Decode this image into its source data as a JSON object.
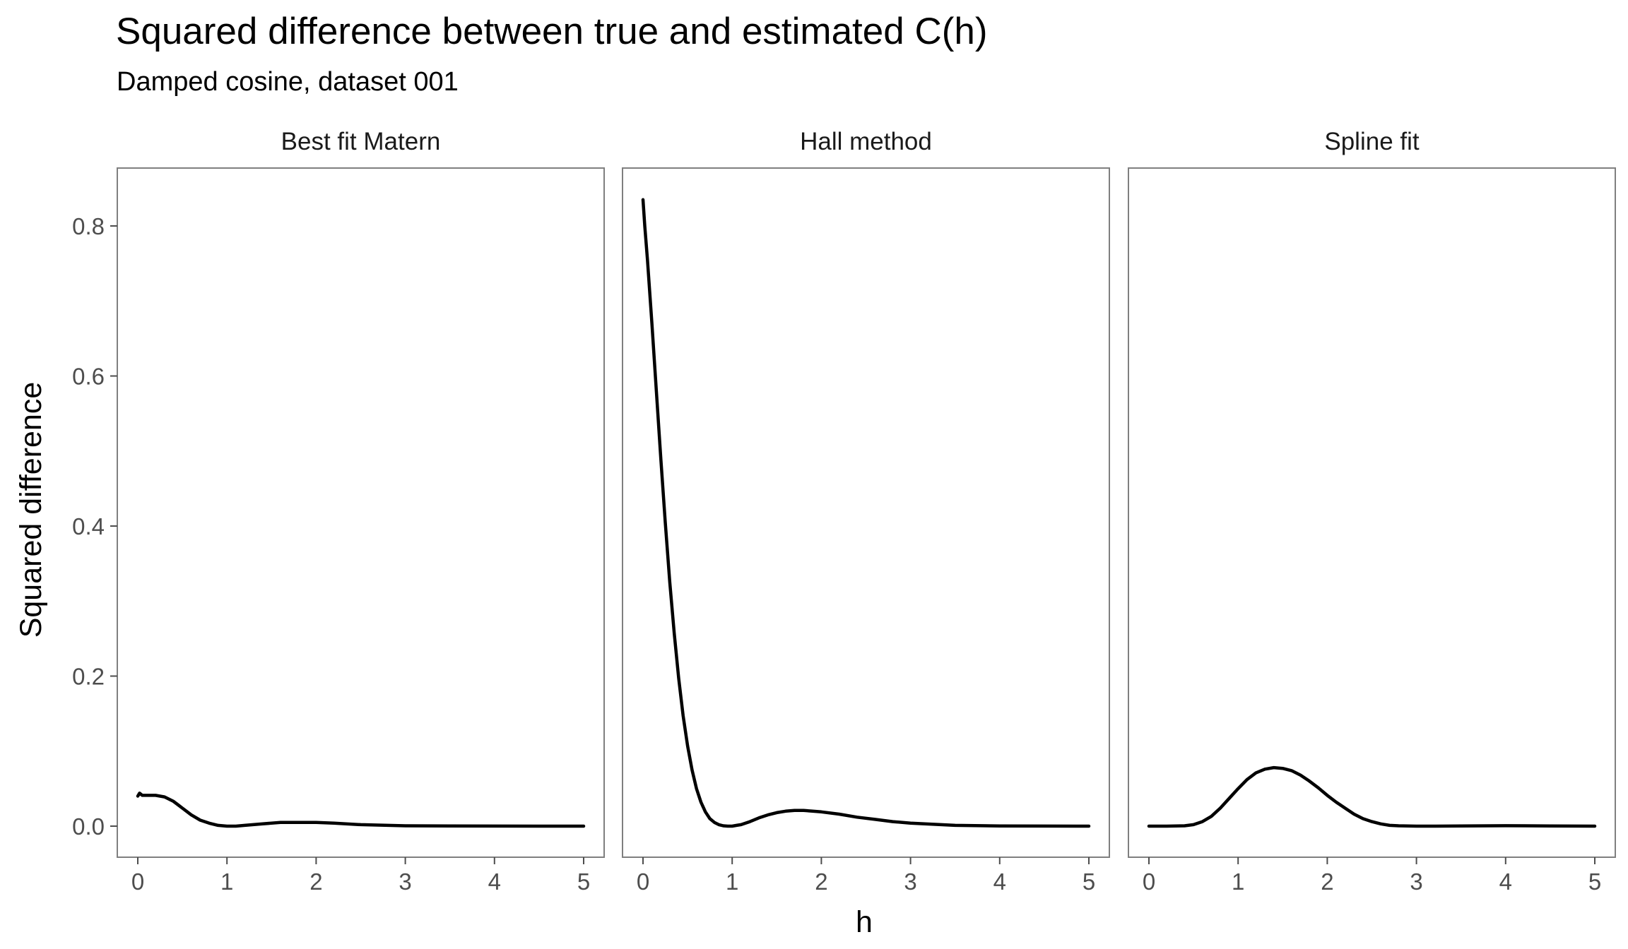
{
  "title": "Squared difference between true and estimated C(h)",
  "subtitle": "Damped cosine, dataset 001",
  "chart_data": {
    "type": "line",
    "xlabel": "h",
    "ylabel": "Squared difference",
    "xlim": [
      0,
      5
    ],
    "ylim": [
      0,
      0.83
    ],
    "x_ticks": [
      "0",
      "1",
      "2",
      "3",
      "4",
      "5"
    ],
    "y_ticks": [
      "0.0",
      "0.2",
      "0.4",
      "0.6",
      "0.8"
    ],
    "grid": false,
    "line_color": "#000000",
    "panel_border_color": "#7f7f7f",
    "facets": [
      {
        "label": "Best fit Matern",
        "x": [
          0,
          0.02,
          0.05,
          0.1,
          0.2,
          0.3,
          0.4,
          0.5,
          0.6,
          0.7,
          0.8,
          0.9,
          1.0,
          1.1,
          1.2,
          1.4,
          1.6,
          1.8,
          2.0,
          2.2,
          2.5,
          3.0,
          3.5,
          4.0,
          4.5,
          5.0
        ],
        "y": [
          0.04,
          0.044,
          0.041,
          0.041,
          0.041,
          0.039,
          0.033,
          0.024,
          0.015,
          0.008,
          0.004,
          0.001,
          0.0,
          0.0,
          0.001,
          0.003,
          0.005,
          0.005,
          0.005,
          0.004,
          0.002,
          0.0005,
          0.0002,
          0.0001,
          0.0,
          0.0
        ]
      },
      {
        "label": "Hall method",
        "x": [
          0,
          0.02,
          0.05,
          0.1,
          0.15,
          0.2,
          0.25,
          0.3,
          0.35,
          0.4,
          0.45,
          0.5,
          0.55,
          0.6,
          0.65,
          0.7,
          0.75,
          0.8,
          0.85,
          0.9,
          0.95,
          1.0,
          1.05,
          1.1,
          1.2,
          1.3,
          1.4,
          1.5,
          1.6,
          1.7,
          1.8,
          1.9,
          2.0,
          2.2,
          2.4,
          2.6,
          2.8,
          3.0,
          3.5,
          4.0,
          4.5,
          5.0
        ],
        "y": [
          0.835,
          0.8,
          0.755,
          0.67,
          0.58,
          0.49,
          0.405,
          0.325,
          0.257,
          0.197,
          0.147,
          0.107,
          0.075,
          0.05,
          0.032,
          0.019,
          0.01,
          0.005,
          0.002,
          0.0005,
          0.0,
          0.0,
          0.001,
          0.002,
          0.006,
          0.011,
          0.015,
          0.018,
          0.02,
          0.021,
          0.021,
          0.02,
          0.019,
          0.016,
          0.012,
          0.009,
          0.006,
          0.004,
          0.001,
          0.0003,
          0.0001,
          0.0
        ]
      },
      {
        "label": "Spline fit",
        "x": [
          0,
          0.2,
          0.4,
          0.5,
          0.6,
          0.7,
          0.8,
          0.9,
          1.0,
          1.1,
          1.2,
          1.3,
          1.4,
          1.5,
          1.6,
          1.7,
          1.8,
          1.9,
          2.0,
          2.1,
          2.2,
          2.3,
          2.4,
          2.5,
          2.6,
          2.7,
          2.8,
          2.9,
          3.0,
          3.2,
          3.5,
          4.0,
          4.5,
          5.0
        ],
        "y": [
          0.0,
          0.0,
          0.0005,
          0.002,
          0.006,
          0.013,
          0.024,
          0.037,
          0.05,
          0.062,
          0.071,
          0.076,
          0.078,
          0.077,
          0.074,
          0.068,
          0.06,
          0.051,
          0.041,
          0.032,
          0.024,
          0.016,
          0.01,
          0.006,
          0.003,
          0.001,
          0.0005,
          0.0002,
          0.0,
          0.0,
          0.0003,
          0.0006,
          0.0003,
          0.0
        ]
      }
    ]
  }
}
